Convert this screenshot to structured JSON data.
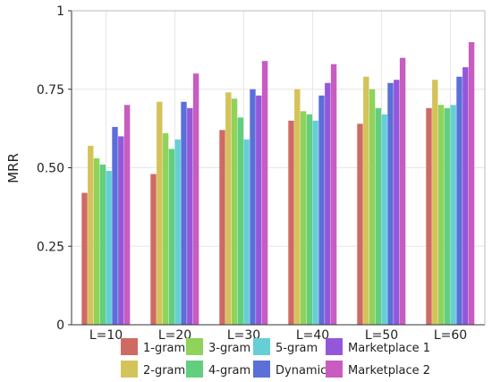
{
  "chart_data": {
    "type": "bar",
    "categories": [
      "L=10",
      "L=20",
      "L=30",
      "L=40",
      "L=50",
      "L=60"
    ],
    "ylabel": "MRR",
    "xlabel": "",
    "ylim": [
      0,
      1
    ],
    "yticks": [
      {
        "value": 0,
        "label": "0"
      },
      {
        "value": 0.25,
        "label": "0.25"
      },
      {
        "value": 0.5,
        "label": "0.50"
      },
      {
        "value": 0.75,
        "label": "0.75"
      },
      {
        "value": 1,
        "label": "1"
      }
    ],
    "grid": true,
    "legend_position": "bottom",
    "series": [
      {
        "name": "1-gram",
        "color": "#cf6a63",
        "values": [
          0.42,
          0.48,
          0.62,
          0.65,
          0.64,
          0.69
        ]
      },
      {
        "name": "2-gram",
        "color": "#d4c35a",
        "values": [
          0.57,
          0.71,
          0.74,
          0.75,
          0.79,
          0.78
        ]
      },
      {
        "name": "3-gram",
        "color": "#8fd35a",
        "values": [
          0.53,
          0.61,
          0.72,
          0.68,
          0.75,
          0.7
        ]
      },
      {
        "name": "4-gram",
        "color": "#62cf7e",
        "values": [
          0.51,
          0.56,
          0.66,
          0.67,
          0.69,
          0.69
        ]
      },
      {
        "name": "5-gram",
        "color": "#66cfd6",
        "values": [
          0.49,
          0.59,
          0.59,
          0.65,
          0.67,
          0.7
        ]
      },
      {
        "name": "Dynamic",
        "color": "#5b6fd8",
        "values": [
          0.63,
          0.71,
          0.75,
          0.73,
          0.77,
          0.79
        ]
      },
      {
        "name": "Marketplace 1",
        "color": "#9557d9",
        "values": [
          0.6,
          0.69,
          0.73,
          0.77,
          0.78,
          0.82
        ]
      },
      {
        "name": "Marketplace 2",
        "color": "#c85cc0",
        "values": [
          0.7,
          0.8,
          0.84,
          0.83,
          0.85,
          0.9
        ]
      }
    ]
  }
}
